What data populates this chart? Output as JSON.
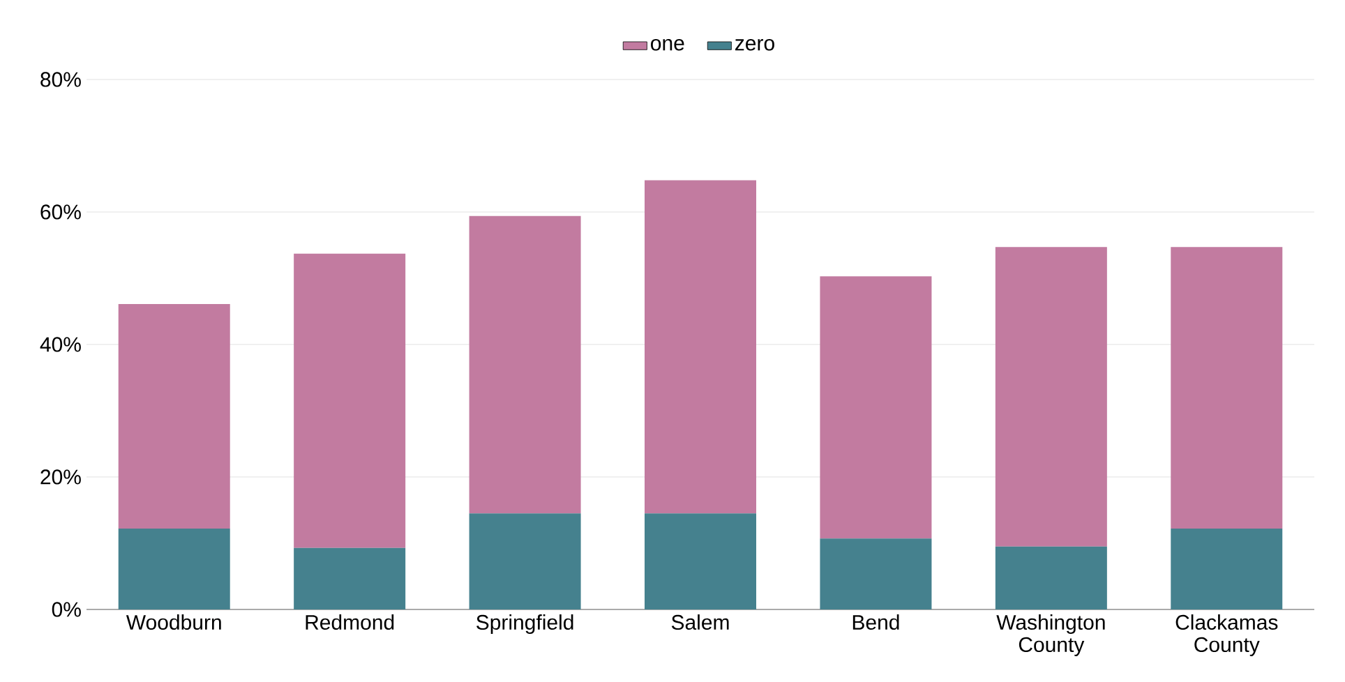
{
  "chart_data": {
    "type": "bar",
    "stacked": true,
    "categories": [
      "Woodburn",
      "Redmond",
      "Springfield",
      "Salem",
      "Bend",
      "Washington County",
      "Clackamas County"
    ],
    "series": [
      {
        "name": "zero",
        "color": "#45818e",
        "values": [
          12.2,
          9.3,
          14.5,
          14.5,
          10.7,
          9.5,
          12.2
        ]
      },
      {
        "name": "one",
        "color": "#c27ba0",
        "values": [
          33.9,
          44.4,
          44.9,
          50.3,
          39.6,
          45.2,
          42.5
        ]
      }
    ],
    "ylim": [
      0,
      80
    ],
    "yticks": [
      {
        "value": 0,
        "label": "0%"
      },
      {
        "value": 20,
        "label": "20%"
      },
      {
        "value": 40,
        "label": "40%"
      },
      {
        "value": 60,
        "label": "60%"
      },
      {
        "value": 80,
        "label": "80%"
      }
    ],
    "grid": "y",
    "legend": "top"
  }
}
